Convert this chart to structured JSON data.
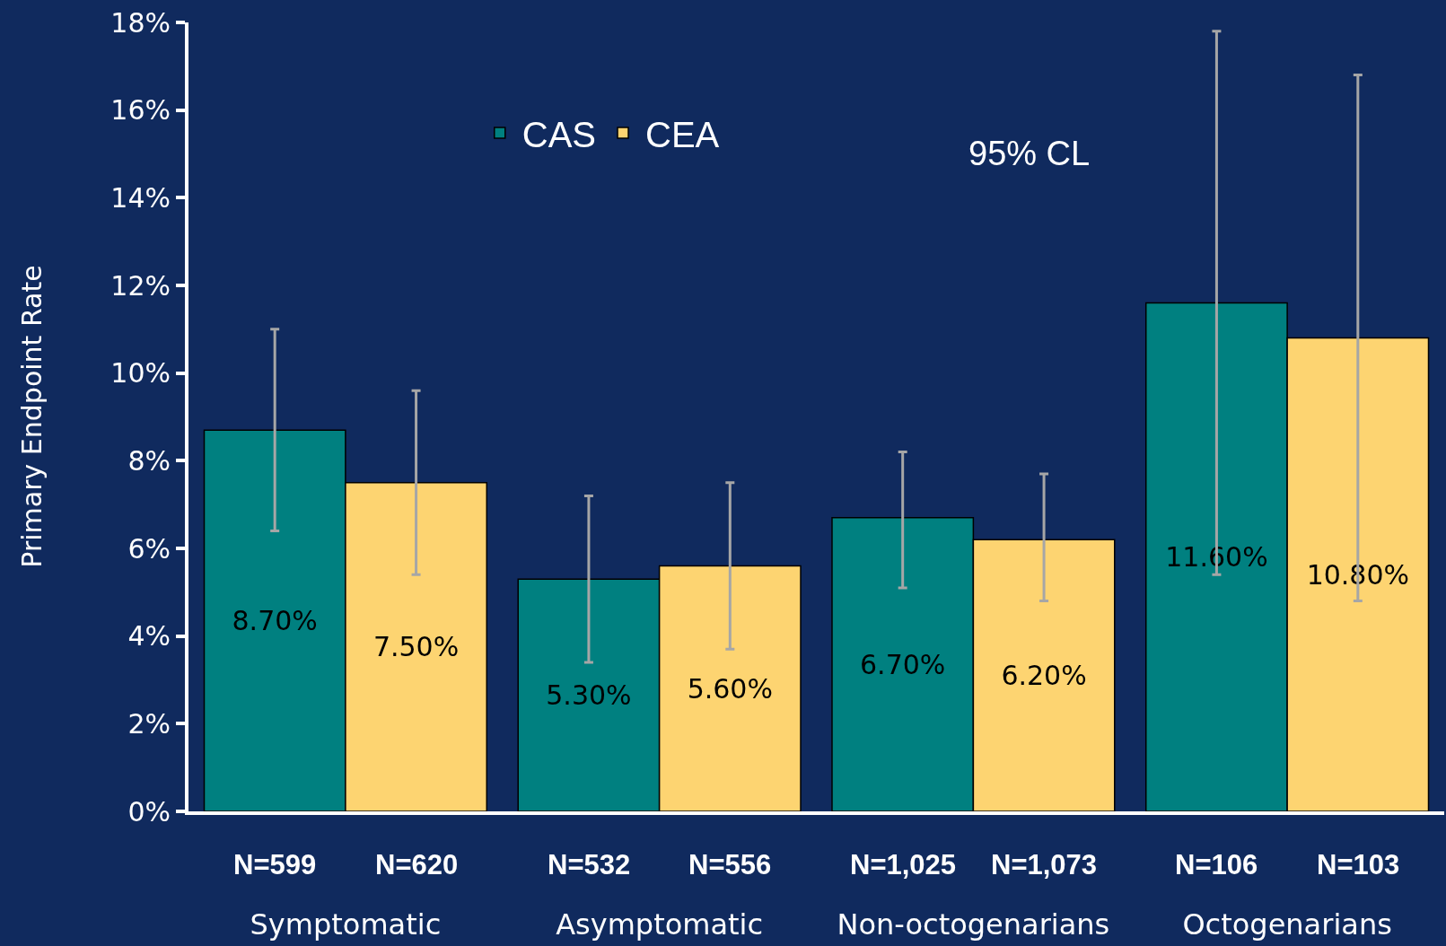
{
  "chart_data": {
    "type": "bar",
    "ylabel": "Primary Endpoint Rate",
    "categories": [
      "Symptomatic",
      "Asymptomatic",
      "Non-octogenarians",
      "Octogenarians"
    ],
    "series": [
      {
        "name": "CAS",
        "color": "#008080",
        "values": [
          8.7,
          5.3,
          6.7,
          11.6
        ],
        "value_labels": [
          "8.70%",
          "5.30%",
          "6.70%",
          "11.60%"
        ],
        "errors": [
          [
            6.4,
            11.0
          ],
          [
            3.4,
            7.2
          ],
          [
            5.1,
            8.2
          ],
          [
            5.4,
            17.8
          ]
        ]
      },
      {
        "name": "CEA",
        "color": "#fdd471",
        "values": [
          7.5,
          5.6,
          6.2,
          10.8
        ],
        "value_labels": [
          "7.50%",
          "5.60%",
          "6.20%",
          "10.80%"
        ],
        "errors": [
          [
            5.4,
            9.6
          ],
          [
            3.7,
            7.5
          ],
          [
            4.8,
            7.7
          ],
          [
            4.8,
            16.8
          ]
        ]
      }
    ],
    "ylim": [
      0,
      18
    ],
    "yticks": [
      {
        "value": 0,
        "label": "0%"
      },
      {
        "value": 2,
        "label": "2%"
      },
      {
        "value": 4,
        "label": "4%"
      },
      {
        "value": 6,
        "label": "6%"
      },
      {
        "value": 8,
        "label": "8%"
      },
      {
        "value": 10,
        "label": "10%"
      },
      {
        "value": 12,
        "label": "12%"
      },
      {
        "value": 14,
        "label": "14%"
      },
      {
        "value": 16,
        "label": "16%"
      },
      {
        "value": 18,
        "label": "18%"
      }
    ],
    "annotations": [
      "N=599",
      "N=620",
      "N=532",
      "N=556",
      "N=1,025",
      "N=1,073",
      "N=106",
      "N=103",
      "95% CL"
    ],
    "legend": "top",
    "grid": false
  }
}
